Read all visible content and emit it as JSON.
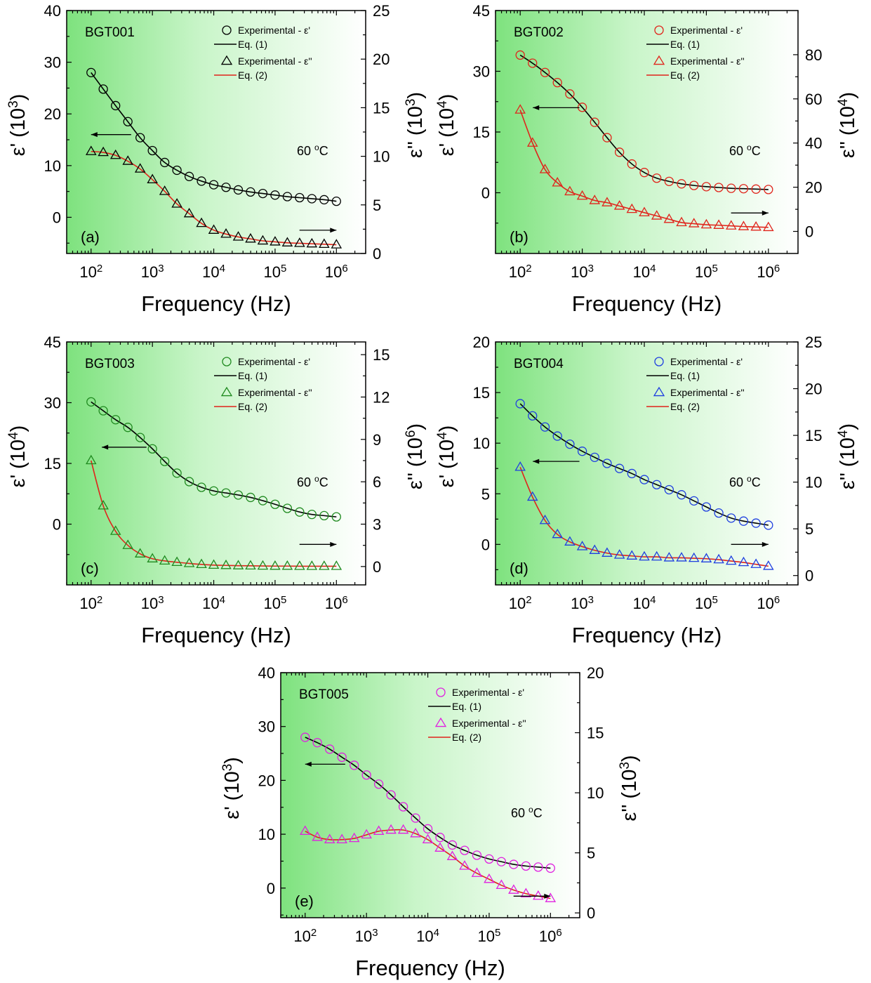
{
  "chart_data": [
    {
      "type": "scatter",
      "panel_id": "a",
      "panel_label": "(a)",
      "sample": "BGT001",
      "temperature_label": "60 °C",
      "xlabel": "Frequency (Hz)",
      "ylabel_left": "ε' (10³)",
      "ylabel_right": "ε'' (10³)",
      "xscale": "log",
      "xlim": [
        40,
        3000000
      ],
      "x_ticks": [
        100,
        1000,
        10000,
        100000,
        1000000
      ],
      "x_tick_labels": [
        "10²",
        "10³",
        "10⁴",
        "10⁵",
        "10⁶"
      ],
      "ylim_left": [
        -7,
        40
      ],
      "yticks_left": [
        0,
        10,
        20,
        30,
        40
      ],
      "ylim_right": [
        0,
        25
      ],
      "yticks_right": [
        0,
        5,
        10,
        15,
        20,
        25
      ],
      "legend": [
        "Experimental - ε'",
        "Eq. (1)",
        "Experimental - ε''",
        "Eq. (2)"
      ],
      "x": [
        100,
        158,
        251,
        398,
        631,
        1000,
        1585,
        2512,
        3981,
        6310,
        10000,
        15849,
        25119,
        39811,
        63096,
        100000,
        158489,
        251189,
        398107,
        630957,
        1000000
      ],
      "series": [
        {
          "name": "Experimental - ε'",
          "axis": "left",
          "marker": "circle",
          "color": "#000000",
          "values": [
            28.0,
            24.8,
            21.6,
            18.5,
            15.4,
            12.9,
            10.6,
            9.1,
            7.9,
            7.0,
            6.3,
            5.8,
            5.3,
            4.9,
            4.6,
            4.3,
            4.0,
            3.8,
            3.6,
            3.4,
            3.1
          ]
        },
        {
          "name": "Experimental - ε''",
          "axis": "right",
          "marker": "triangle",
          "color": "#000000",
          "values": [
            10.5,
            10.4,
            10.1,
            9.5,
            8.7,
            7.6,
            6.4,
            5.1,
            4.1,
            3.1,
            2.4,
            2.0,
            1.7,
            1.5,
            1.3,
            1.2,
            1.1,
            1.05,
            1.0,
            0.95,
            0.9
          ]
        }
      ],
      "fit_colors": {
        "eq1": "#000000",
        "eq2": "#e0241b"
      },
      "arrow_left_y": 16,
      "arrow_right_y": -2.5,
      "arrow_left_x": [
        100,
        450
      ],
      "arrow_right_x": [
        250000,
        1000000
      ]
    },
    {
      "type": "scatter",
      "panel_id": "b",
      "panel_label": "(b)",
      "sample": "BGT002",
      "temperature_label": "60 °C",
      "xlabel": "Frequency (Hz)",
      "ylabel_left": "ε' (10⁴)",
      "ylabel_right": "ε'' (10⁴)",
      "xscale": "log",
      "xlim": [
        40,
        3000000
      ],
      "x_ticks": [
        100,
        1000,
        10000,
        100000,
        1000000
      ],
      "x_tick_labels": [
        "10²",
        "10³",
        "10⁴",
        "10⁵",
        "10⁶"
      ],
      "ylim_left": [
        -15,
        45
      ],
      "yticks_left": [
        0,
        15,
        30,
        45
      ],
      "ylim_right": [
        -10,
        100
      ],
      "yticks_right": [
        0,
        20,
        40,
        60,
        80
      ],
      "legend": [
        "Experimental - ε'",
        "Eq. (1)",
        "Experimental - ε''",
        "Eq. (2)"
      ],
      "x": [
        100,
        158,
        251,
        398,
        631,
        1000,
        1585,
        2512,
        3981,
        6310,
        10000,
        15849,
        25119,
        39811,
        63096,
        100000,
        158489,
        251189,
        398107,
        630957,
        1000000
      ],
      "series": [
        {
          "name": "Experimental - ε'",
          "axis": "left",
          "marker": "circle",
          "color": "#e0241b",
          "values": [
            34.0,
            32.0,
            29.7,
            27.2,
            24.4,
            21.1,
            17.4,
            13.6,
            10.0,
            7.1,
            5.0,
            3.6,
            2.8,
            2.2,
            1.8,
            1.5,
            1.3,
            1.1,
            1.0,
            0.9,
            0.8
          ]
        },
        {
          "name": "Experimental - ε''",
          "axis": "right",
          "marker": "triangle",
          "color": "#e0241b",
          "values": [
            55,
            40,
            28,
            22,
            18,
            16,
            14,
            13,
            11.5,
            10,
            8.5,
            7,
            5.5,
            4,
            3.5,
            3,
            2.8,
            2.5,
            2.2,
            2,
            1.8
          ]
        }
      ],
      "fit_colors": {
        "eq1": "#000000",
        "eq2": "#e0241b"
      },
      "arrow_left_y": 21,
      "arrow_right_y": -5,
      "arrow_left_x": [
        160,
        900
      ],
      "arrow_right_x": [
        250000,
        1000000
      ]
    },
    {
      "type": "scatter",
      "panel_id": "c",
      "panel_label": "(c)",
      "sample": "BGT003",
      "temperature_label": "60 °C",
      "xlabel": "Frequency (Hz)",
      "ylabel_left": "ε' (10⁴)",
      "ylabel_right": "ε'' (10⁶)",
      "xscale": "log",
      "xlim": [
        40,
        3000000
      ],
      "x_ticks": [
        100,
        1000,
        10000,
        100000,
        1000000
      ],
      "x_tick_labels": [
        "10²",
        "10³",
        "10⁴",
        "10⁵",
        "10⁶"
      ],
      "ylim_left": [
        -15,
        45
      ],
      "yticks_left": [
        0,
        15,
        30,
        45
      ],
      "ylim_right": [
        -1.3,
        15.9
      ],
      "yticks_right": [
        0,
        3,
        6,
        9,
        12,
        15
      ],
      "legend": [
        "Experimental - ε'",
        "Eq. (1)",
        "Experimental - ε''",
        "Eq. (2)"
      ],
      "x": [
        100,
        158,
        251,
        398,
        631,
        1000,
        1585,
        2512,
        3981,
        6310,
        10000,
        15849,
        25119,
        39811,
        63096,
        100000,
        158489,
        251189,
        398107,
        630957,
        1000000
      ],
      "series": [
        {
          "name": "Experimental - ε'",
          "axis": "left",
          "marker": "circle",
          "color": "#1f8a1f",
          "values": [
            30.2,
            28.0,
            25.8,
            23.9,
            21.4,
            18.6,
            15.5,
            12.6,
            10.5,
            9.1,
            8.2,
            7.7,
            7.2,
            6.6,
            5.8,
            4.9,
            3.9,
            3.0,
            2.4,
            2.1,
            1.8
          ]
        },
        {
          "name": "Experimental - ε''",
          "axis": "right",
          "marker": "triangle",
          "color": "#1f8a1f",
          "values": [
            7.5,
            4.3,
            2.5,
            1.5,
            0.9,
            0.55,
            0.4,
            0.3,
            0.22,
            0.15,
            0.1,
            0.08,
            0.06,
            0.05,
            0.04,
            0.03,
            0.03,
            0.02,
            0.02,
            0.02,
            0.02
          ]
        }
      ],
      "fit_colors": {
        "eq1": "#000000",
        "eq2": "#e0241b"
      },
      "arrow_left_y": 19,
      "arrow_right_y": -5,
      "arrow_left_x": [
        150,
        800
      ],
      "arrow_right_x": [
        250000,
        1000000
      ]
    },
    {
      "type": "scatter",
      "panel_id": "d",
      "panel_label": "(d)",
      "sample": "BGT004",
      "temperature_label": "60 °C",
      "xlabel": "Frequency (Hz)",
      "ylabel_left": "ε' (10⁴)",
      "ylabel_right": "ε'' (10⁴)",
      "xscale": "log",
      "xlim": [
        40,
        3000000
      ],
      "x_ticks": [
        100,
        1000,
        10000,
        100000,
        1000000
      ],
      "x_tick_labels": [
        "10²",
        "10³",
        "10⁴",
        "10⁵",
        "10⁶"
      ],
      "ylim_left": [
        -4,
        20
      ],
      "yticks_left": [
        0,
        5,
        10,
        15,
        20
      ],
      "ylim_right": [
        -1,
        25
      ],
      "yticks_right": [
        0,
        5,
        10,
        15,
        20,
        25
      ],
      "legend": [
        "Experimental - ε'",
        "Eq. (1)",
        "Experimental - ε''",
        "Eq. (2)"
      ],
      "x": [
        100,
        158,
        251,
        398,
        631,
        1000,
        1585,
        2512,
        3981,
        6310,
        10000,
        15849,
        25119,
        39811,
        63096,
        100000,
        158489,
        251189,
        398107,
        630957,
        1000000
      ],
      "series": [
        {
          "name": "Experimental - ε'",
          "axis": "left",
          "marker": "circle",
          "color": "#1f3fe0",
          "values": [
            13.9,
            12.7,
            11.6,
            10.7,
            9.9,
            9.2,
            8.6,
            8.0,
            7.5,
            7.0,
            6.4,
            5.9,
            5.4,
            4.9,
            4.3,
            3.7,
            3.1,
            2.6,
            2.3,
            2.1,
            1.9
          ]
        },
        {
          "name": "Experimental - ε''",
          "axis": "right",
          "marker": "triangle",
          "color": "#1f3fe0",
          "values": [
            11.6,
            8.4,
            5.9,
            4.4,
            3.6,
            3.1,
            2.7,
            2.4,
            2.2,
            2.1,
            2.0,
            2.0,
            1.9,
            1.9,
            1.85,
            1.8,
            1.7,
            1.55,
            1.4,
            1.2,
            1.0
          ]
        }
      ],
      "fit_colors": {
        "eq1": "#000000",
        "eq2": "#e0241b"
      },
      "arrow_left_y": 8.2,
      "arrow_right_y": 0,
      "arrow_left_x": [
        160,
        900
      ],
      "arrow_right_x": [
        250000,
        1000000
      ]
    },
    {
      "type": "scatter",
      "panel_id": "e",
      "panel_label": "(e)",
      "sample": "BGT005",
      "temperature_label": "60 °C",
      "xlabel": "Frequency (Hz)",
      "ylabel_left": "ε' (10³)",
      "ylabel_right": "ε'' (10³)",
      "xscale": "log",
      "xlim": [
        40,
        3000000
      ],
      "x_ticks": [
        100,
        1000,
        10000,
        100000,
        1000000
      ],
      "x_tick_labels": [
        "10²",
        "10³",
        "10⁴",
        "10⁵",
        "10⁶"
      ],
      "ylim_left": [
        -5.5,
        40
      ],
      "yticks_left": [
        0,
        10,
        20,
        30,
        40
      ],
      "ylim_right": [
        -0.4,
        20
      ],
      "yticks_right": [
        0,
        5,
        10,
        15,
        20
      ],
      "legend": [
        "Experimental - ε'",
        "Eq. (1)",
        "Experimental - ε''",
        "Eq. (2)"
      ],
      "x": [
        100,
        158,
        251,
        398,
        631,
        1000,
        1585,
        2512,
        3981,
        6310,
        10000,
        15849,
        25119,
        39811,
        63096,
        100000,
        158489,
        251189,
        398107,
        630957,
        1000000
      ],
      "series": [
        {
          "name": "Experimental - ε'",
          "axis": "left",
          "marker": "circle",
          "color": "#e020e0",
          "values": [
            28.0,
            27.0,
            25.8,
            24.3,
            22.8,
            21.0,
            19.3,
            17.3,
            15.1,
            13.0,
            11.0,
            9.4,
            8.0,
            7.0,
            6.1,
            5.4,
            4.9,
            4.4,
            4.1,
            3.9,
            3.7
          ]
        },
        {
          "name": "Experimental - ε''",
          "axis": "right",
          "marker": "triangle",
          "color": "#e020e0",
          "values": [
            6.8,
            6.3,
            6.1,
            6.1,
            6.2,
            6.5,
            6.8,
            6.9,
            6.9,
            6.6,
            6.1,
            5.4,
            4.7,
            3.9,
            3.3,
            2.8,
            2.3,
            1.9,
            1.6,
            1.4,
            1.2
          ]
        }
      ],
      "fit_colors": {
        "eq1": "#000000",
        "eq2": "#e0241b"
      },
      "arrow_left_y": 23,
      "arrow_right_y": -1.5,
      "arrow_left_x": [
        100,
        450
      ],
      "arrow_right_x": [
        250000,
        1000000
      ]
    }
  ]
}
